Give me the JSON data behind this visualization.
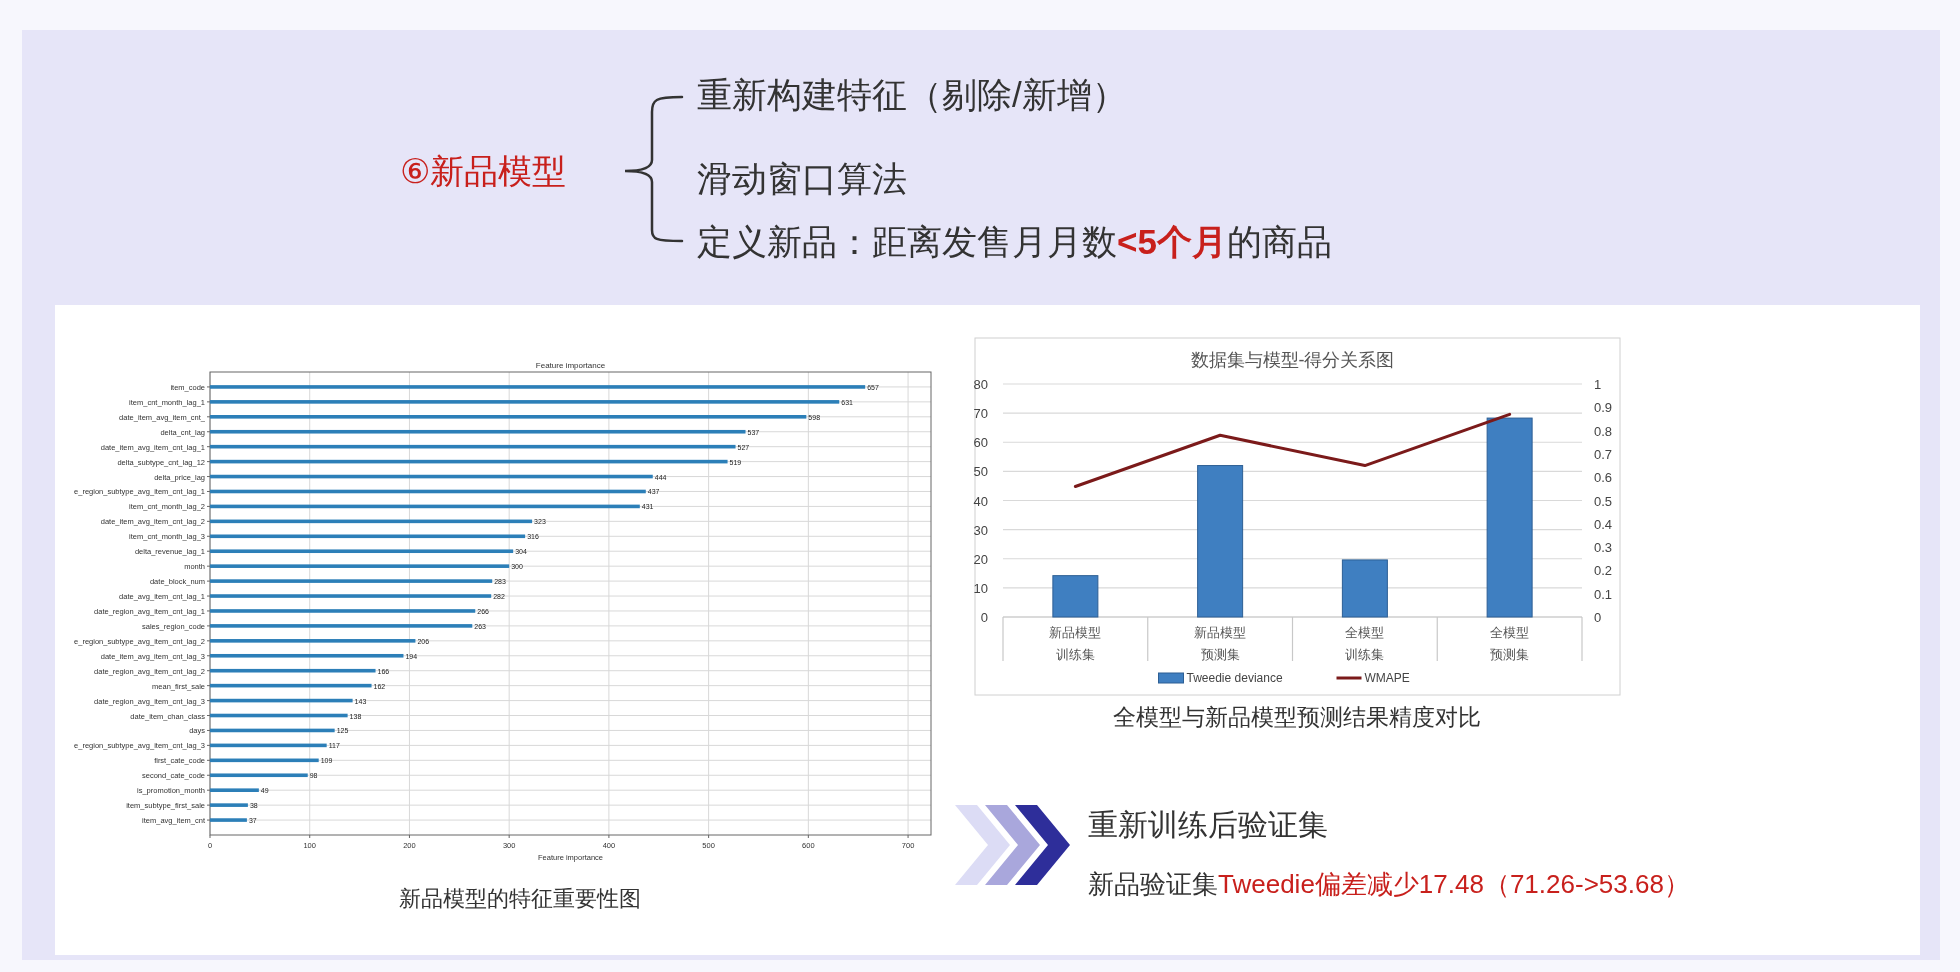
{
  "chart_data": [
    {
      "type": "other",
      "title": "⑥新品模型",
      "color": "#c8201c",
      "annotations": [
        "重新构建特征（剔除/新增）",
        "滑动窗口算法",
        "定义新品：距离发售月月数**<5个月**的商品"
      ]
    },
    {
      "type": "bar",
      "orientation": "horizontal",
      "title": "Feature importance",
      "xlabel": "Feature importance",
      "color": "#2c7fb8",
      "grid": true,
      "data_labels": true,
      "xlim": [
        0,
        723
      ],
      "xticks": [
        0,
        100,
        200,
        300,
        400,
        500,
        600,
        700
      ],
      "categories": [
        "item_code",
        "item_cnt_month_lag_1",
        "date_item_avg_item_cnt_",
        "delta_cnt_lag",
        "date_item_avg_item_cnt_lag_1",
        "delta_subtype_cnt_lag_12",
        "delta_price_lag",
        "e_region_subtype_avg_item_cnt_lag_1",
        "item_cnt_month_lag_2",
        "date_item_avg_item_cnt_lag_2",
        "item_cnt_month_lag_3",
        "delta_revenue_lag_1",
        "month",
        "date_block_num",
        "date_avg_item_cnt_lag_1",
        "date_region_avg_item_cnt_lag_1",
        "sales_region_code",
        "e_region_subtype_avg_item_cnt_lag_2",
        "date_item_avg_item_cnt_lag_3",
        "date_region_avg_item_cnt_lag_2",
        "mean_first_sale",
        "date_region_avg_item_cnt_lag_3",
        "date_item_chan_class",
        "days",
        "e_region_subtype_avg_item_cnt_lag_3",
        "first_cate_code",
        "second_cate_code",
        "is_promotion_month",
        "item_subtype_first_sale",
        "item_avg_item_cnt"
      ],
      "values": [
        657,
        631,
        598,
        537,
        527,
        519,
        444,
        437,
        431,
        323,
        316,
        304,
        300,
        283,
        282,
        266,
        263,
        206,
        194,
        166,
        162,
        143,
        138,
        125,
        117,
        109,
        98,
        49,
        38,
        37
      ],
      "annotations": [
        "新品模型的特征重要性图"
      ]
    },
    {
      "type": "bar",
      "title": "数据集与模型-得分关系图",
      "categories": [
        "新品模型训练集",
        "新品模型预测集",
        "全模型训练集",
        "全模型预测集"
      ],
      "series": [
        {
          "name": "Tweedie deviance",
          "type": "bar",
          "color": "#3f7fc1",
          "values": [
            14.2,
            52,
            19.6,
            68.3
          ]
        },
        {
          "name": "WMAPE",
          "type": "line",
          "axis": "y2",
          "color": "#7b1a1a",
          "values": [
            0.56,
            0.78,
            0.65,
            0.87
          ]
        }
      ],
      "ylim": [
        0,
        80
      ],
      "yticks": [
        0,
        10,
        20,
        30,
        40,
        50,
        60,
        70,
        80
      ],
      "y2lim": [
        0,
        1
      ],
      "y2ticks": [
        0,
        0.1,
        0.2,
        0.3,
        0.4,
        0.5,
        0.6,
        0.7,
        0.8,
        0.9,
        1
      ],
      "grid": "y",
      "legend": "bottom",
      "annotations": [
        "全模型与新品模型预测结果精度对比"
      ]
    },
    {
      "type": "other",
      "title": "重新训练后验证集",
      "color": "#c8201c",
      "annotations": [
        "新品验证集",
        "Tweedie偏差减少17.48（71.26->53.68）"
      ]
    }
  ]
}
